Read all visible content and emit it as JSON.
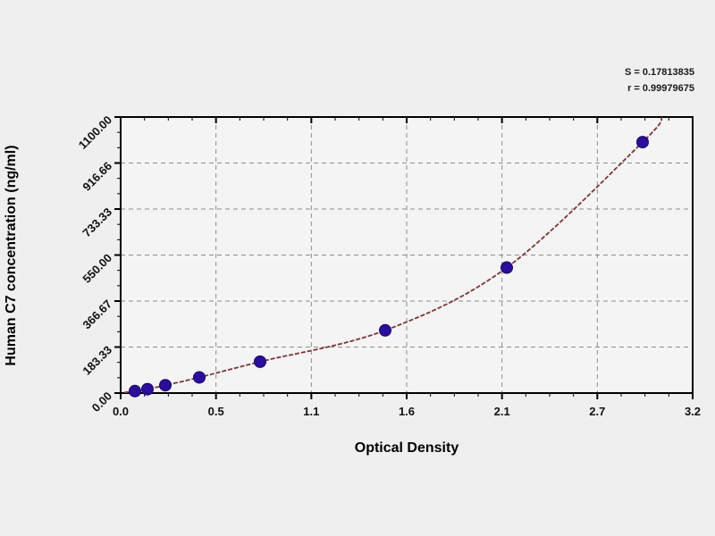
{
  "page": {
    "background": "#efefef",
    "plot_background": "#f4f4f4"
  },
  "stats": {
    "line1": "S = 0.17813835",
    "line2": "r = 0.99979675"
  },
  "chart_data": {
    "type": "scatter",
    "title": "",
    "xlabel": "Optical Density",
    "ylabel": "Human  C7 concentration (ng/ml)",
    "xlim": [
      0,
      3.2
    ],
    "ylim": [
      0,
      1100
    ],
    "grid": "dashed",
    "legend_position": "none",
    "x_ticks": {
      "labels": [
        "0.0",
        "0.5",
        "1.1",
        "1.6",
        "2.1",
        "2.7",
        "3.2"
      ]
    },
    "y_ticks": {
      "labels": [
        "0.00",
        "183.33",
        "366.67",
        "550.00",
        "733.33",
        "916.66",
        "1100.00"
      ]
    },
    "series": [
      {
        "name": "standard-points",
        "type": "scatter",
        "color": "#2b0d9c",
        "edge_color": "#180663",
        "points": [
          [
            0.08,
            7.8
          ],
          [
            0.15,
            15.6
          ],
          [
            0.25,
            31.2
          ],
          [
            0.44,
            62.5
          ],
          [
            0.78,
            125
          ],
          [
            1.48,
            250
          ],
          [
            2.16,
            500
          ],
          [
            2.92,
            1000
          ]
        ]
      },
      {
        "name": "fit-curve",
        "type": "line",
        "color": "#7d3535",
        "dashed": true,
        "curve_start": [
          0.02,
          2
        ],
        "curve_end": [
          3.03,
          1100
        ]
      }
    ],
    "grid_color": "#8c8c8c",
    "frame_color": "#000000"
  }
}
